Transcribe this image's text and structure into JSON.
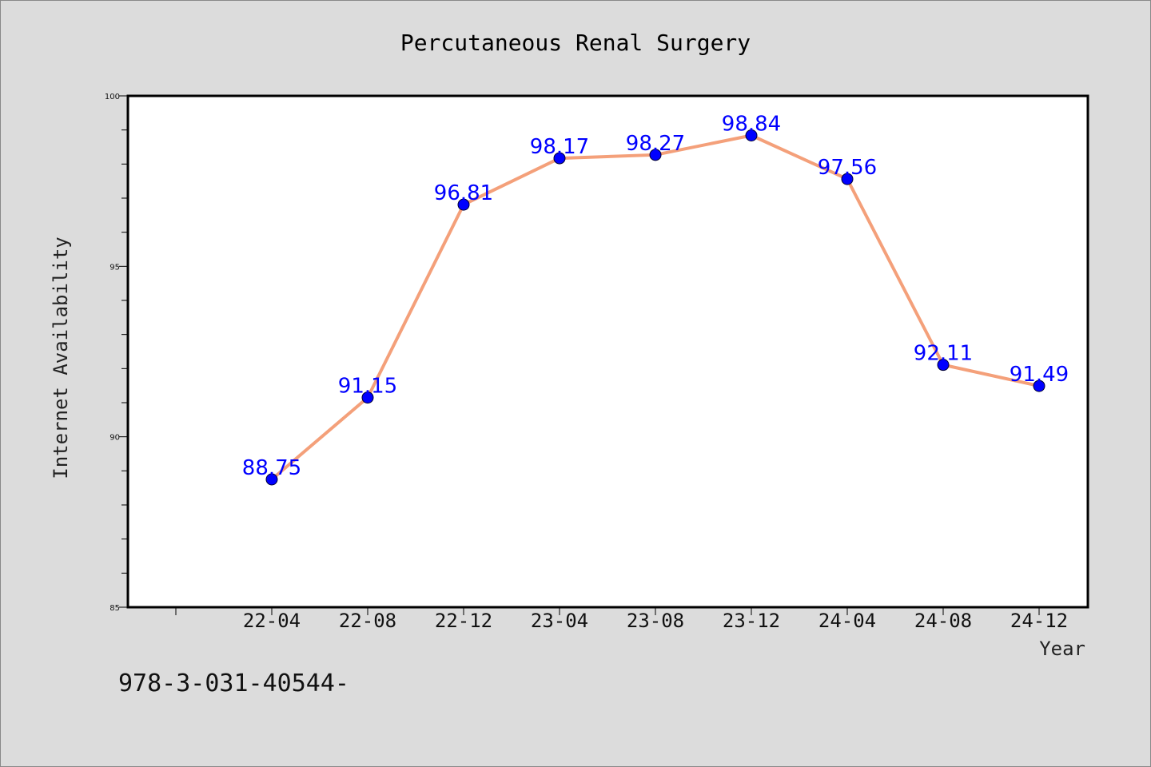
{
  "chart_data": {
    "type": "line",
    "title": "Percutaneous Renal Surgery",
    "xlabel": "Year",
    "ylabel": "Internet Availability",
    "categories": [
      "22-04",
      "22-08",
      "22-12",
      "23-04",
      "23-08",
      "23-12",
      "24-04",
      "24-08",
      "24-12"
    ],
    "series": [
      {
        "values": [
          88.75,
          91.15,
          96.81,
          98.17,
          98.27,
          98.84,
          97.56,
          92.11,
          91.49
        ],
        "labels": [
          "88.75",
          "91.15",
          "96.81",
          "98.17",
          "98.27",
          "98.84",
          "97.56",
          "92.11",
          "91.49"
        ]
      }
    ],
    "ylim": [
      85,
      100
    ],
    "yticks": [
      "85",
      "90",
      "95",
      "100"
    ],
    "grid": false,
    "legend": "none",
    "line_color": "#f4a07a",
    "marker_color": "#0000ff",
    "label_color": "#0000ff"
  },
  "footer_text": "978-3-031-40544-"
}
